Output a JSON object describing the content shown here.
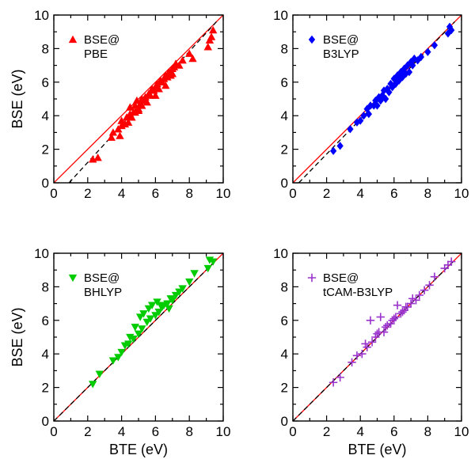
{
  "figure": {
    "shared_xlabel": "BTE (eV)",
    "shared_ylabel": "BSE (eV)"
  },
  "chart_data": [
    {
      "type": "scatter",
      "legend": {
        "line1": "BSE@",
        "line2": "PBE",
        "placement": "top-left"
      },
      "marker": "triangle-up",
      "color": "#ff0000",
      "xlim": [
        0,
        10
      ],
      "ylim": [
        0,
        10
      ],
      "xticks": [
        0,
        2,
        4,
        6,
        8,
        10
      ],
      "yticks": [
        0,
        2,
        4,
        6,
        8,
        10
      ],
      "xlabel": "",
      "ylabel": "BSE (eV)",
      "grid": false,
      "identity_line": {
        "color": "#ff0000",
        "from": [
          0,
          0
        ],
        "to": [
          10,
          10
        ]
      },
      "fit_line": {
        "style": "dashed",
        "color": "#000000",
        "from": [
          0.9,
          0
        ],
        "to": [
          9.6,
          9.6
        ]
      },
      "x": [
        2.3,
        2.6,
        3.4,
        3.5,
        3.8,
        3.9,
        4.0,
        4.0,
        4.2,
        4.3,
        4.4,
        4.5,
        4.5,
        4.6,
        4.7,
        4.8,
        4.8,
        4.9,
        5.0,
        5.0,
        5.1,
        5.2,
        5.2,
        5.3,
        5.4,
        5.5,
        5.6,
        5.7,
        5.8,
        5.9,
        6.0,
        6.0,
        6.1,
        6.2,
        6.3,
        6.4,
        6.5,
        6.6,
        6.6,
        6.7,
        6.8,
        6.9,
        7.0,
        7.0,
        7.1,
        7.2,
        7.4,
        7.6,
        8.0,
        8.2,
        9.1,
        9.2,
        9.3,
        9.4
      ],
      "y": [
        1.4,
        1.5,
        2.7,
        3.0,
        3.2,
        2.8,
        3.4,
        3.7,
        3.5,
        3.9,
        3.6,
        4.1,
        4.5,
        3.9,
        4.2,
        4.6,
        4.2,
        4.9,
        4.3,
        4.4,
        4.7,
        4.6,
        5.0,
        4.9,
        5.1,
        4.8,
        5.3,
        5.2,
        5.6,
        5.5,
        5.7,
        5.2,
        5.9,
        5.6,
        6.1,
        6.0,
        6.2,
        5.8,
        6.4,
        6.3,
        6.6,
        6.4,
        6.8,
        6.5,
        6.9,
        7.1,
        7.0,
        7.3,
        7.7,
        7.4,
        8.1,
        8.5,
        8.7,
        9.1
      ]
    },
    {
      "type": "scatter",
      "legend": {
        "line1": "BSE@",
        "line2": "B3LYP",
        "placement": "top-left"
      },
      "marker": "diamond",
      "color": "#0000ff",
      "xlim": [
        0,
        10
      ],
      "ylim": [
        0,
        10
      ],
      "xticks": [
        0,
        2,
        4,
        6,
        8,
        10
      ],
      "yticks": [
        0,
        2,
        4,
        6,
        8,
        10
      ],
      "xlabel": "",
      "ylabel": "",
      "grid": false,
      "identity_line": {
        "color": "#ff0000",
        "from": [
          0,
          0
        ],
        "to": [
          10,
          10
        ]
      },
      "fit_line": {
        "style": "dashed",
        "color": "#000000",
        "from": [
          0.35,
          0
        ],
        "to": [
          9.6,
          9.6
        ]
      },
      "x": [
        2.4,
        2.8,
        3.4,
        3.8,
        4.0,
        4.2,
        4.4,
        4.5,
        4.6,
        4.8,
        4.9,
        5.0,
        5.1,
        5.2,
        5.3,
        5.4,
        5.5,
        5.6,
        5.7,
        5.8,
        5.9,
        6.0,
        6.1,
        6.2,
        6.3,
        6.4,
        6.5,
        6.6,
        6.7,
        6.8,
        6.9,
        7.0,
        7.1,
        7.2,
        7.4,
        7.6,
        8.0,
        8.4,
        9.2,
        9.3,
        9.4
      ],
      "y": [
        1.9,
        2.2,
        3.2,
        3.6,
        3.7,
        4.0,
        4.4,
        4.1,
        4.6,
        4.6,
        4.9,
        4.6,
        5.1,
        4.9,
        5.2,
        5.5,
        5.0,
        5.6,
        5.4,
        5.9,
        5.7,
        6.2,
        5.9,
        6.4,
        6.1,
        6.6,
        6.3,
        6.8,
        6.5,
        7.0,
        6.6,
        7.2,
        7.0,
        7.4,
        7.3,
        7.5,
        7.8,
        8.2,
        8.9,
        9.3,
        9.1
      ]
    },
    {
      "type": "scatter",
      "legend": {
        "line1": "BSE@",
        "line2": "BHLYP",
        "placement": "top-left"
      },
      "marker": "triangle-down",
      "color": "#00cc00",
      "xlim": [
        0,
        10
      ],
      "ylim": [
        0,
        10
      ],
      "xticks": [
        0,
        2,
        4,
        6,
        8,
        10
      ],
      "yticks": [
        0,
        2,
        4,
        6,
        8,
        10
      ],
      "xlabel": "BTE (eV)",
      "ylabel": "BSE (eV)",
      "grid": false,
      "identity_line": {
        "color": "#ff0000",
        "from": [
          0,
          0
        ],
        "to": [
          10,
          10
        ]
      },
      "fit_line": {
        "style": "dashed",
        "color": "#000000",
        "from": [
          0,
          0
        ],
        "to": [
          9.6,
          9.6
        ]
      },
      "x": [
        2.3,
        2.7,
        3.5,
        3.8,
        4.0,
        4.2,
        4.4,
        4.5,
        4.7,
        4.8,
        5.0,
        5.1,
        5.2,
        5.3,
        5.5,
        5.6,
        5.7,
        5.8,
        6.0,
        6.1,
        6.2,
        6.3,
        6.4,
        6.5,
        6.7,
        6.8,
        6.9,
        7.0,
        7.2,
        7.4,
        7.6,
        8.0,
        8.3,
        9.1,
        9.2,
        9.4
      ],
      "y": [
        2.2,
        2.8,
        3.6,
        3.8,
        4.1,
        4.5,
        4.6,
        5.0,
        4.9,
        5.6,
        5.2,
        6.2,
        5.5,
        6.4,
        5.9,
        6.7,
        6.1,
        6.9,
        6.3,
        7.1,
        6.5,
        6.9,
        6.8,
        6.9,
        7.0,
        6.7,
        7.3,
        7.2,
        7.5,
        7.7,
        7.9,
        8.3,
        8.8,
        9.1,
        9.6,
        9.5
      ]
    },
    {
      "type": "scatter",
      "legend": {
        "line1": "BSE@",
        "line2": "tCAM-B3LYP",
        "placement": "top-left"
      },
      "marker": "plus",
      "color": "#9933cc",
      "xlim": [
        0,
        10
      ],
      "ylim": [
        0,
        10
      ],
      "xticks": [
        0,
        2,
        4,
        6,
        8,
        10
      ],
      "yticks": [
        0,
        2,
        4,
        6,
        8,
        10
      ],
      "xlabel": "BTE (eV)",
      "ylabel": "",
      "grid": false,
      "identity_line": {
        "color": "#ff0000",
        "from": [
          0,
          0
        ],
        "to": [
          10,
          10
        ]
      },
      "fit_line": {
        "style": "dashed",
        "color": "#000000",
        "from": [
          0,
          0
        ],
        "to": [
          9.6,
          9.6
        ]
      },
      "x": [
        2.4,
        2.8,
        3.5,
        3.8,
        4.1,
        4.3,
        4.4,
        4.6,
        4.7,
        4.9,
        5.0,
        5.1,
        5.2,
        5.4,
        5.5,
        5.6,
        5.8,
        5.9,
        6.0,
        6.1,
        6.2,
        6.4,
        6.5,
        6.6,
        6.7,
        6.8,
        7.0,
        7.1,
        7.3,
        7.5,
        7.8,
        8.1,
        8.4,
        9.0,
        9.2,
        9.4
      ],
      "y": [
        2.3,
        2.6,
        3.5,
        3.9,
        4.0,
        4.6,
        4.4,
        6.0,
        4.7,
        5.0,
        5.2,
        5.3,
        6.2,
        5.3,
        5.6,
        5.7,
        5.8,
        6.0,
        6.1,
        6.2,
        6.9,
        6.4,
        6.5,
        6.6,
        6.8,
        6.8,
        7.0,
        7.3,
        7.2,
        7.5,
        7.8,
        8.1,
        8.6,
        9.1,
        9.3,
        9.5
      ]
    }
  ]
}
